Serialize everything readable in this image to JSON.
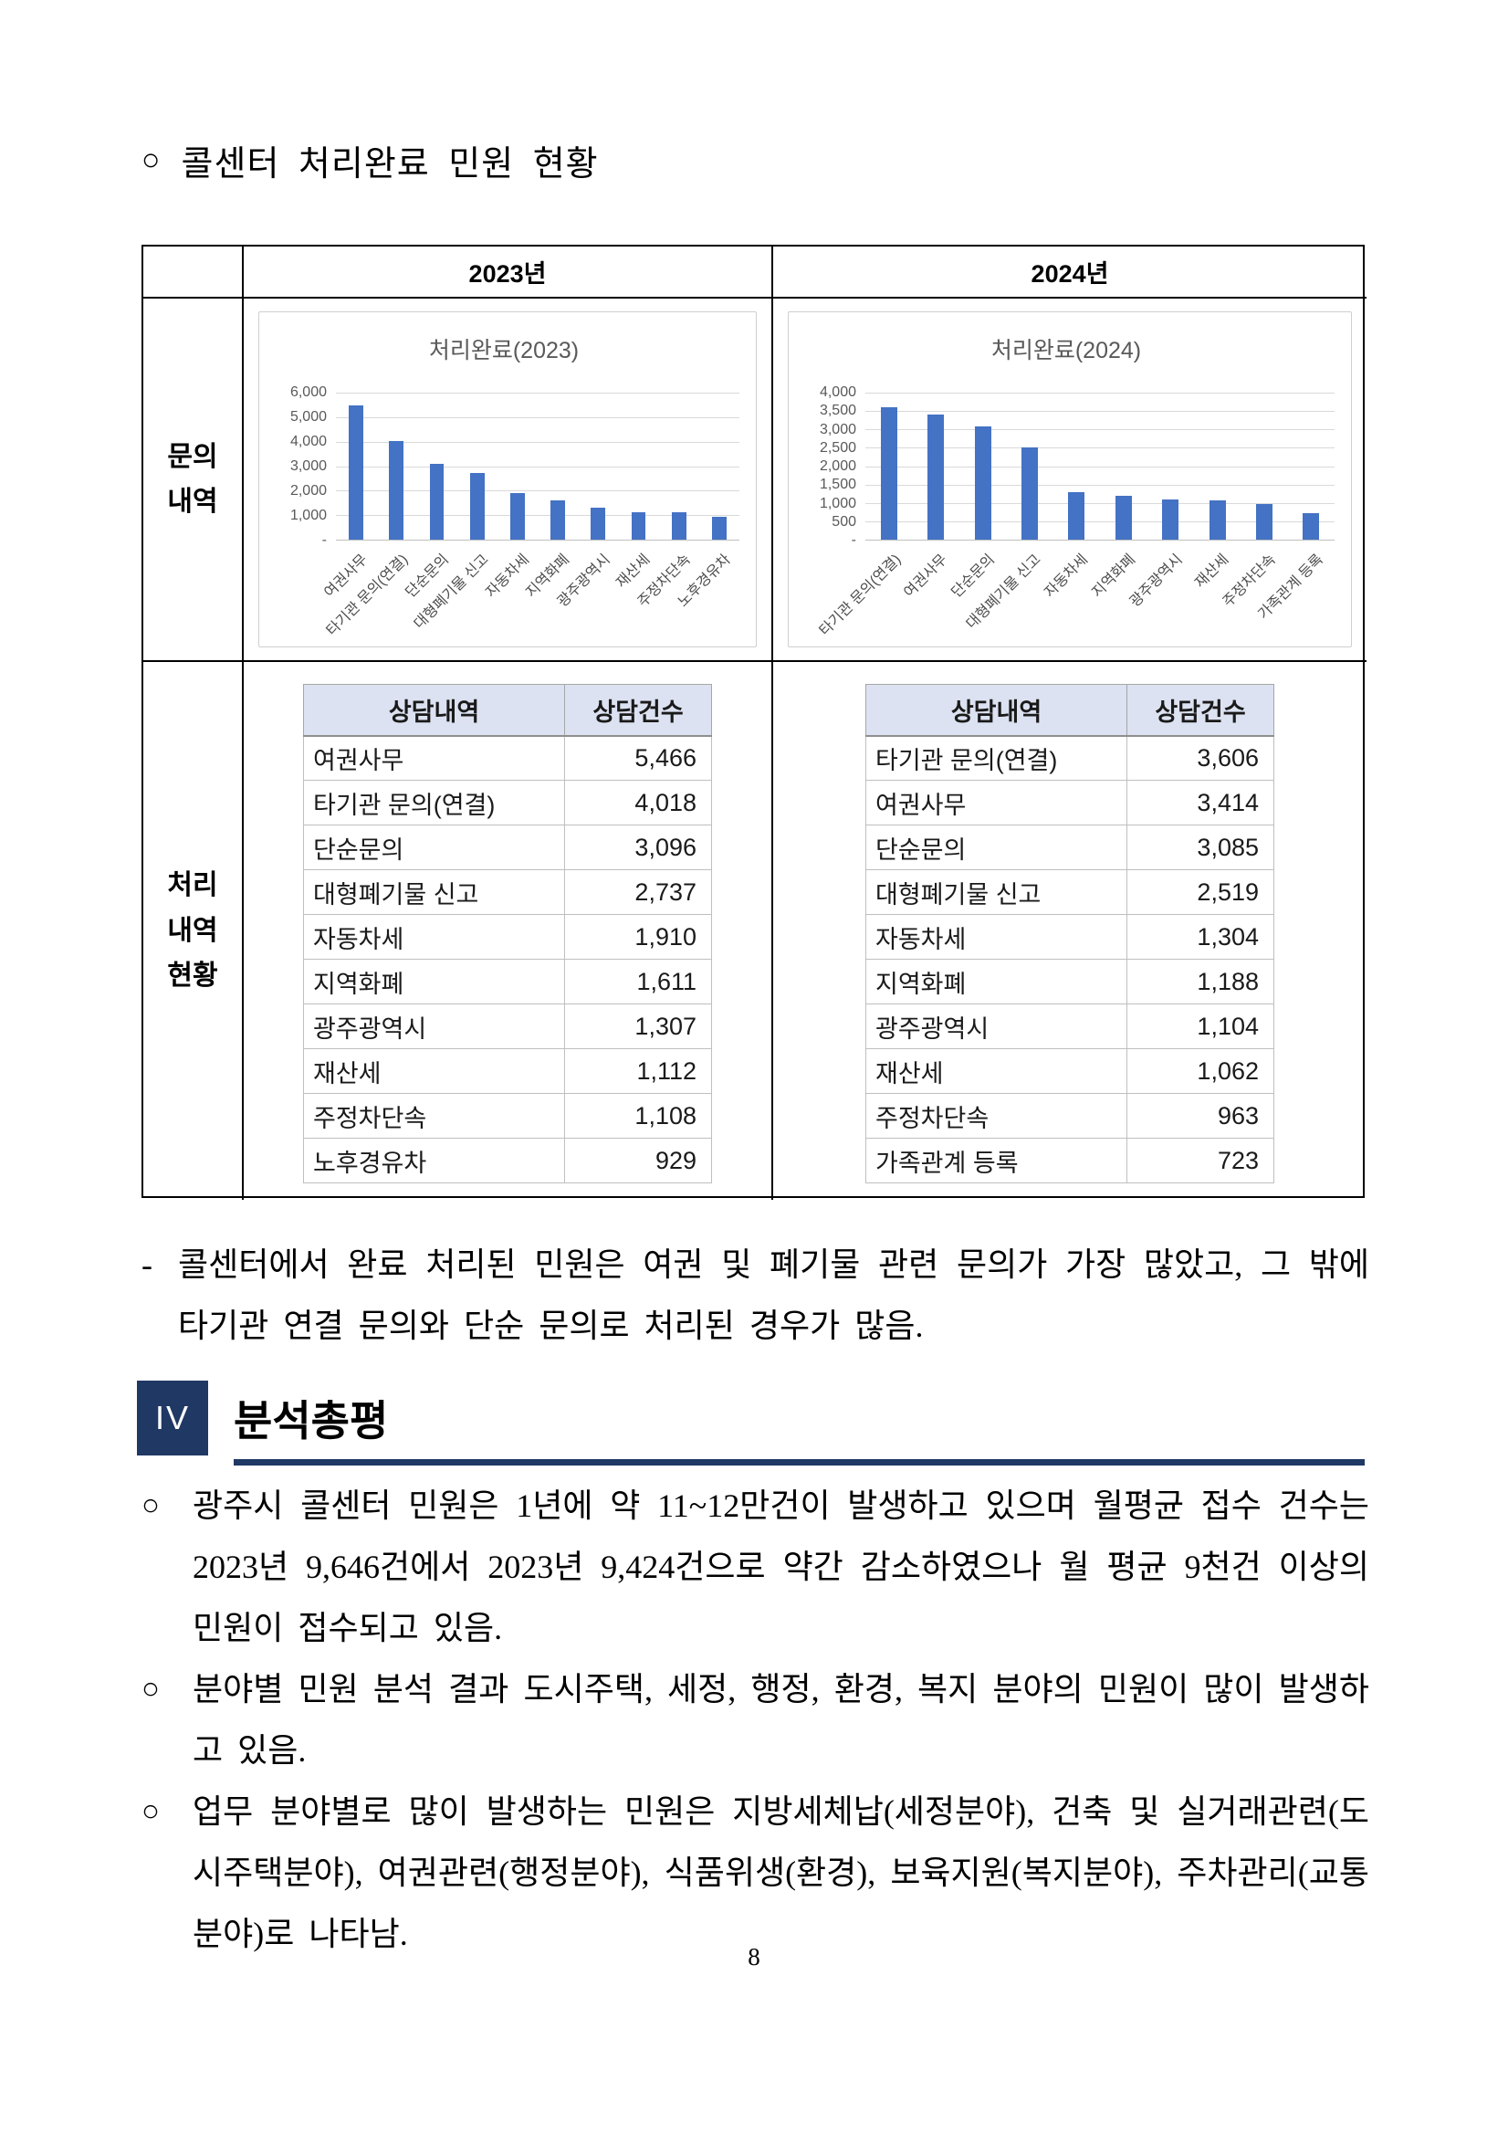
{
  "title": {
    "marker": "○",
    "text": "콜센터 처리완료 민원 현황"
  },
  "main_table": {
    "col_headers": [
      "2023년",
      "2024년"
    ],
    "row_headers": [
      "문의\n내역",
      "처리\n내역\n현황"
    ]
  },
  "chart_data": [
    {
      "type": "bar",
      "title": "처리완료(2023)",
      "categories": [
        "여권사무",
        "타기관 문의(연결)",
        "단순문의",
        "대형폐기물 신고",
        "자동차세",
        "지역화폐",
        "광주광역시",
        "재산세",
        "주정차단속",
        "노후경유차"
      ],
      "values": [
        5466,
        4018,
        3096,
        2737,
        1910,
        1611,
        1307,
        1112,
        1108,
        929
      ],
      "ylim": [
        0,
        6000
      ],
      "yticklabels": [
        "6,000",
        "5,000",
        "4,000",
        "3,000",
        "2,000",
        "1,000",
        "-"
      ],
      "bar_color": "#4472c4",
      "grid": true,
      "legend": "none"
    },
    {
      "type": "bar",
      "title": "처리완료(2024)",
      "categories": [
        "타기관 문의(연결)",
        "여권사무",
        "단순문의",
        "대형폐기물 신고",
        "자동차세",
        "지역화폐",
        "광주광역시",
        "재산세",
        "주정차단속",
        "가족관계 등록"
      ],
      "values": [
        3606,
        3414,
        3085,
        2519,
        1304,
        1188,
        1104,
        1062,
        963,
        723
      ],
      "ylim": [
        0,
        4000
      ],
      "yticklabels": [
        "4,000",
        "3,500",
        "3,000",
        "2,500",
        "2,000",
        "1,500",
        "1,000",
        "500",
        "-"
      ],
      "bar_color": "#4472c4",
      "grid": true,
      "legend": "none"
    }
  ],
  "detail_tables": [
    {
      "headers": [
        "상담내역",
        "상담건수"
      ],
      "rows": [
        [
          "여권사무",
          "5,466"
        ],
        [
          "타기관 문의(연결)",
          "4,018"
        ],
        [
          "단순문의",
          "3,096"
        ],
        [
          "대형폐기물 신고",
          "2,737"
        ],
        [
          "자동차세",
          "1,910"
        ],
        [
          "지역화폐",
          "1,611"
        ],
        [
          "광주광역시",
          "1,307"
        ],
        [
          "재산세",
          "1,112"
        ],
        [
          "주정차단속",
          "1,108"
        ],
        [
          "노후경유차",
          "929"
        ]
      ]
    },
    {
      "headers": [
        "상담내역",
        "상담건수"
      ],
      "rows": [
        [
          "타기관 문의(연결)",
          "3,606"
        ],
        [
          "여권사무",
          "3,414"
        ],
        [
          "단순문의",
          "3,085"
        ],
        [
          "대형폐기물 신고",
          "2,519"
        ],
        [
          "자동차세",
          "1,304"
        ],
        [
          "지역화폐",
          "1,188"
        ],
        [
          "광주광역시",
          "1,104"
        ],
        [
          "재산세",
          "1,062"
        ],
        [
          "주정차단속",
          "963"
        ],
        [
          "가족관계 등록",
          "723"
        ]
      ]
    }
  ],
  "note": {
    "marker": "-",
    "text": "콜센터에서 완료 처리된 민원은 여권 및 폐기물 관련 문의가 가장 많았고, 그 밖에 타기관 연결 문의와 단순 문의로 처리된 경우가 많음."
  },
  "section": {
    "numeral": "IV",
    "title": "분석총평"
  },
  "bullets": [
    {
      "marker": "○",
      "text": "광주시 콜센터 민원은 1년에 약 11~12만건이 발생하고 있으며 월평균 접수 건수는 2023년 9,646건에서 2023년 9,424건으로 약간 감소하였으나 월 평균 9천건 이상의 민원이 접수되고 있음."
    },
    {
      "marker": "○",
      "text": "분야별 민원 분석 결과 도시주택, 세정, 행정, 환경, 복지 분야의 민원이 많이 발생하고 있음."
    },
    {
      "marker": "○",
      "text": "업무 분야별로 많이 발생하는 민원은 지방세체납(세정분야), 건축 및 실거래관련(도시주택분야), 여권관련(행정분야), 식품위생(환경), 보육지원(복지분야), 주차관리(교통분야)로 나타남."
    }
  ],
  "colors": {
    "bar_blue": "#4472c4",
    "table_header_bg": "#dce2f1",
    "section_navy": "#1f3864"
  },
  "page_number": "8"
}
